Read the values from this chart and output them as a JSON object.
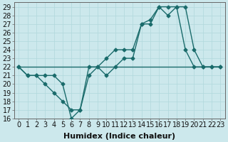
{
  "xlabel": "Humidex (Indice chaleur)",
  "ylabel": "",
  "bg_color": "#cce8ec",
  "line_color": "#1a6b6b",
  "xlim": [
    -0.5,
    23.5
  ],
  "ylim": [
    16,
    29.5
  ],
  "xticks": [
    0,
    1,
    2,
    3,
    4,
    5,
    6,
    7,
    8,
    9,
    10,
    11,
    12,
    13,
    14,
    15,
    16,
    17,
    18,
    19,
    20,
    21,
    22,
    23
  ],
  "yticks": [
    16,
    17,
    18,
    19,
    20,
    21,
    22,
    23,
    24,
    25,
    26,
    27,
    28,
    29
  ],
  "line1_x": [
    0,
    1,
    2,
    3,
    4,
    5,
    6,
    7,
    8,
    9,
    10,
    11,
    12,
    13,
    14,
    15,
    16,
    17,
    18,
    19,
    20,
    21,
    22,
    23
  ],
  "line1_y": [
    22,
    21,
    21,
    21,
    21,
    20,
    16,
    17,
    22,
    22,
    21,
    22,
    23,
    23,
    27,
    27,
    29,
    29,
    29,
    24,
    22,
    22,
    22,
    22
  ],
  "line2_x": [
    0,
    1,
    2,
    3,
    4,
    5,
    6,
    7,
    8,
    9,
    10,
    11,
    12,
    13,
    14,
    15,
    16,
    17,
    18,
    19,
    20,
    21,
    22,
    23
  ],
  "line2_y": [
    22,
    21,
    21,
    20,
    19,
    18,
    17,
    17,
    21,
    22,
    23,
    24,
    24,
    24,
    27,
    27.5,
    29,
    28,
    29,
    29,
    24,
    22,
    22,
    22
  ],
  "line3_x": [
    0,
    23
  ],
  "line3_y": [
    22,
    22
  ],
  "grid_color": "#b0d8dc",
  "font_size": 7,
  "marker": "D",
  "marker_size": 2.5,
  "lw": 1.0
}
